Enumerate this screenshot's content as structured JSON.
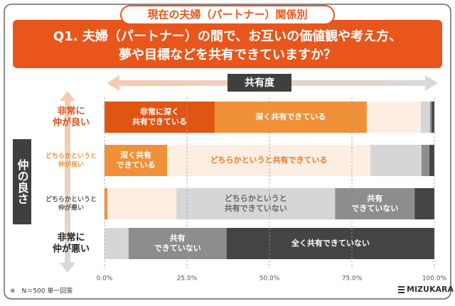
{
  "chart_data": {
    "type": "stacked_barh",
    "badge": "現在の夫婦（パートナー）関係別",
    "question": [
      "Q1. 夫婦（パートナー）の間で、お互いの価値観や考え方、",
      "夢や目標などを共有できていますか？"
    ],
    "x_axis_label": "共有度",
    "y_axis_label": "仲の良さ",
    "categories": [
      [
        "非常に",
        "仲が良い"
      ],
      [
        "どちらかというと",
        "仲が良い"
      ],
      [
        "どちらかというと",
        "仲が悪い"
      ],
      [
        "非常に",
        "仲が悪い"
      ]
    ],
    "category_colors": [
      "#d9531e",
      "#e8913a",
      "#555555",
      "#222222"
    ],
    "series": [
      {
        "color": "#e05514",
        "text_color": "#ffffff",
        "values": [
          33.4,
          0,
          0,
          0
        ],
        "labels": [
          [
            "非常に深く",
            "共有できている"
          ],
          null,
          null,
          null
        ]
      },
      {
        "color": "#f0913a",
        "text_color": "#ffffff",
        "values": [
          46.1,
          19.0,
          0.9,
          0
        ],
        "labels": [
          [
            "深く共有できている"
          ],
          [
            "深く共有",
            "できている"
          ],
          null,
          null
        ]
      },
      {
        "color": "#fdeee3",
        "text_color": "#e8782a",
        "values": [
          16.4,
          61.6,
          20.9,
          0
        ],
        "labels": [
          null,
          [
            "どちらかというと共有できている"
          ],
          null,
          null
        ]
      },
      {
        "color": "#d6d6d6",
        "text_color": "#666666",
        "values": [
          2.8,
          15.5,
          48.1,
          7.3
        ],
        "labels": [
          null,
          null,
          [
            "どちらかというと",
            "共有できていない"
          ],
          null
        ]
      },
      {
        "color": "#8d8d8d",
        "text_color": "#ffffff",
        "values": [
          0.5,
          2.4,
          24.1,
          29.7
        ],
        "labels": [
          null,
          null,
          [
            "共有",
            "できていない"
          ],
          [
            "共有",
            "できていない"
          ]
        ]
      },
      {
        "color": "#444444",
        "text_color": "#ffffff",
        "values": [
          0.8,
          1.5,
          6.0,
          63.0
        ],
        "labels": [
          null,
          null,
          null,
          [
            "全く共有できていない"
          ]
        ]
      }
    ],
    "xlim": [
      0,
      100
    ],
    "xticks": [
      {
        "value": 0,
        "label": "0.0%"
      },
      {
        "value": 25,
        "label": "25.0%"
      },
      {
        "value": 50,
        "label": "50.0%"
      },
      {
        "value": 75,
        "label": "75.0%"
      },
      {
        "value": 100,
        "label": "100.0%"
      }
    ],
    "grid": true,
    "footnote": "※　N＝500 単一回答",
    "logo": "MIZUKARA"
  }
}
